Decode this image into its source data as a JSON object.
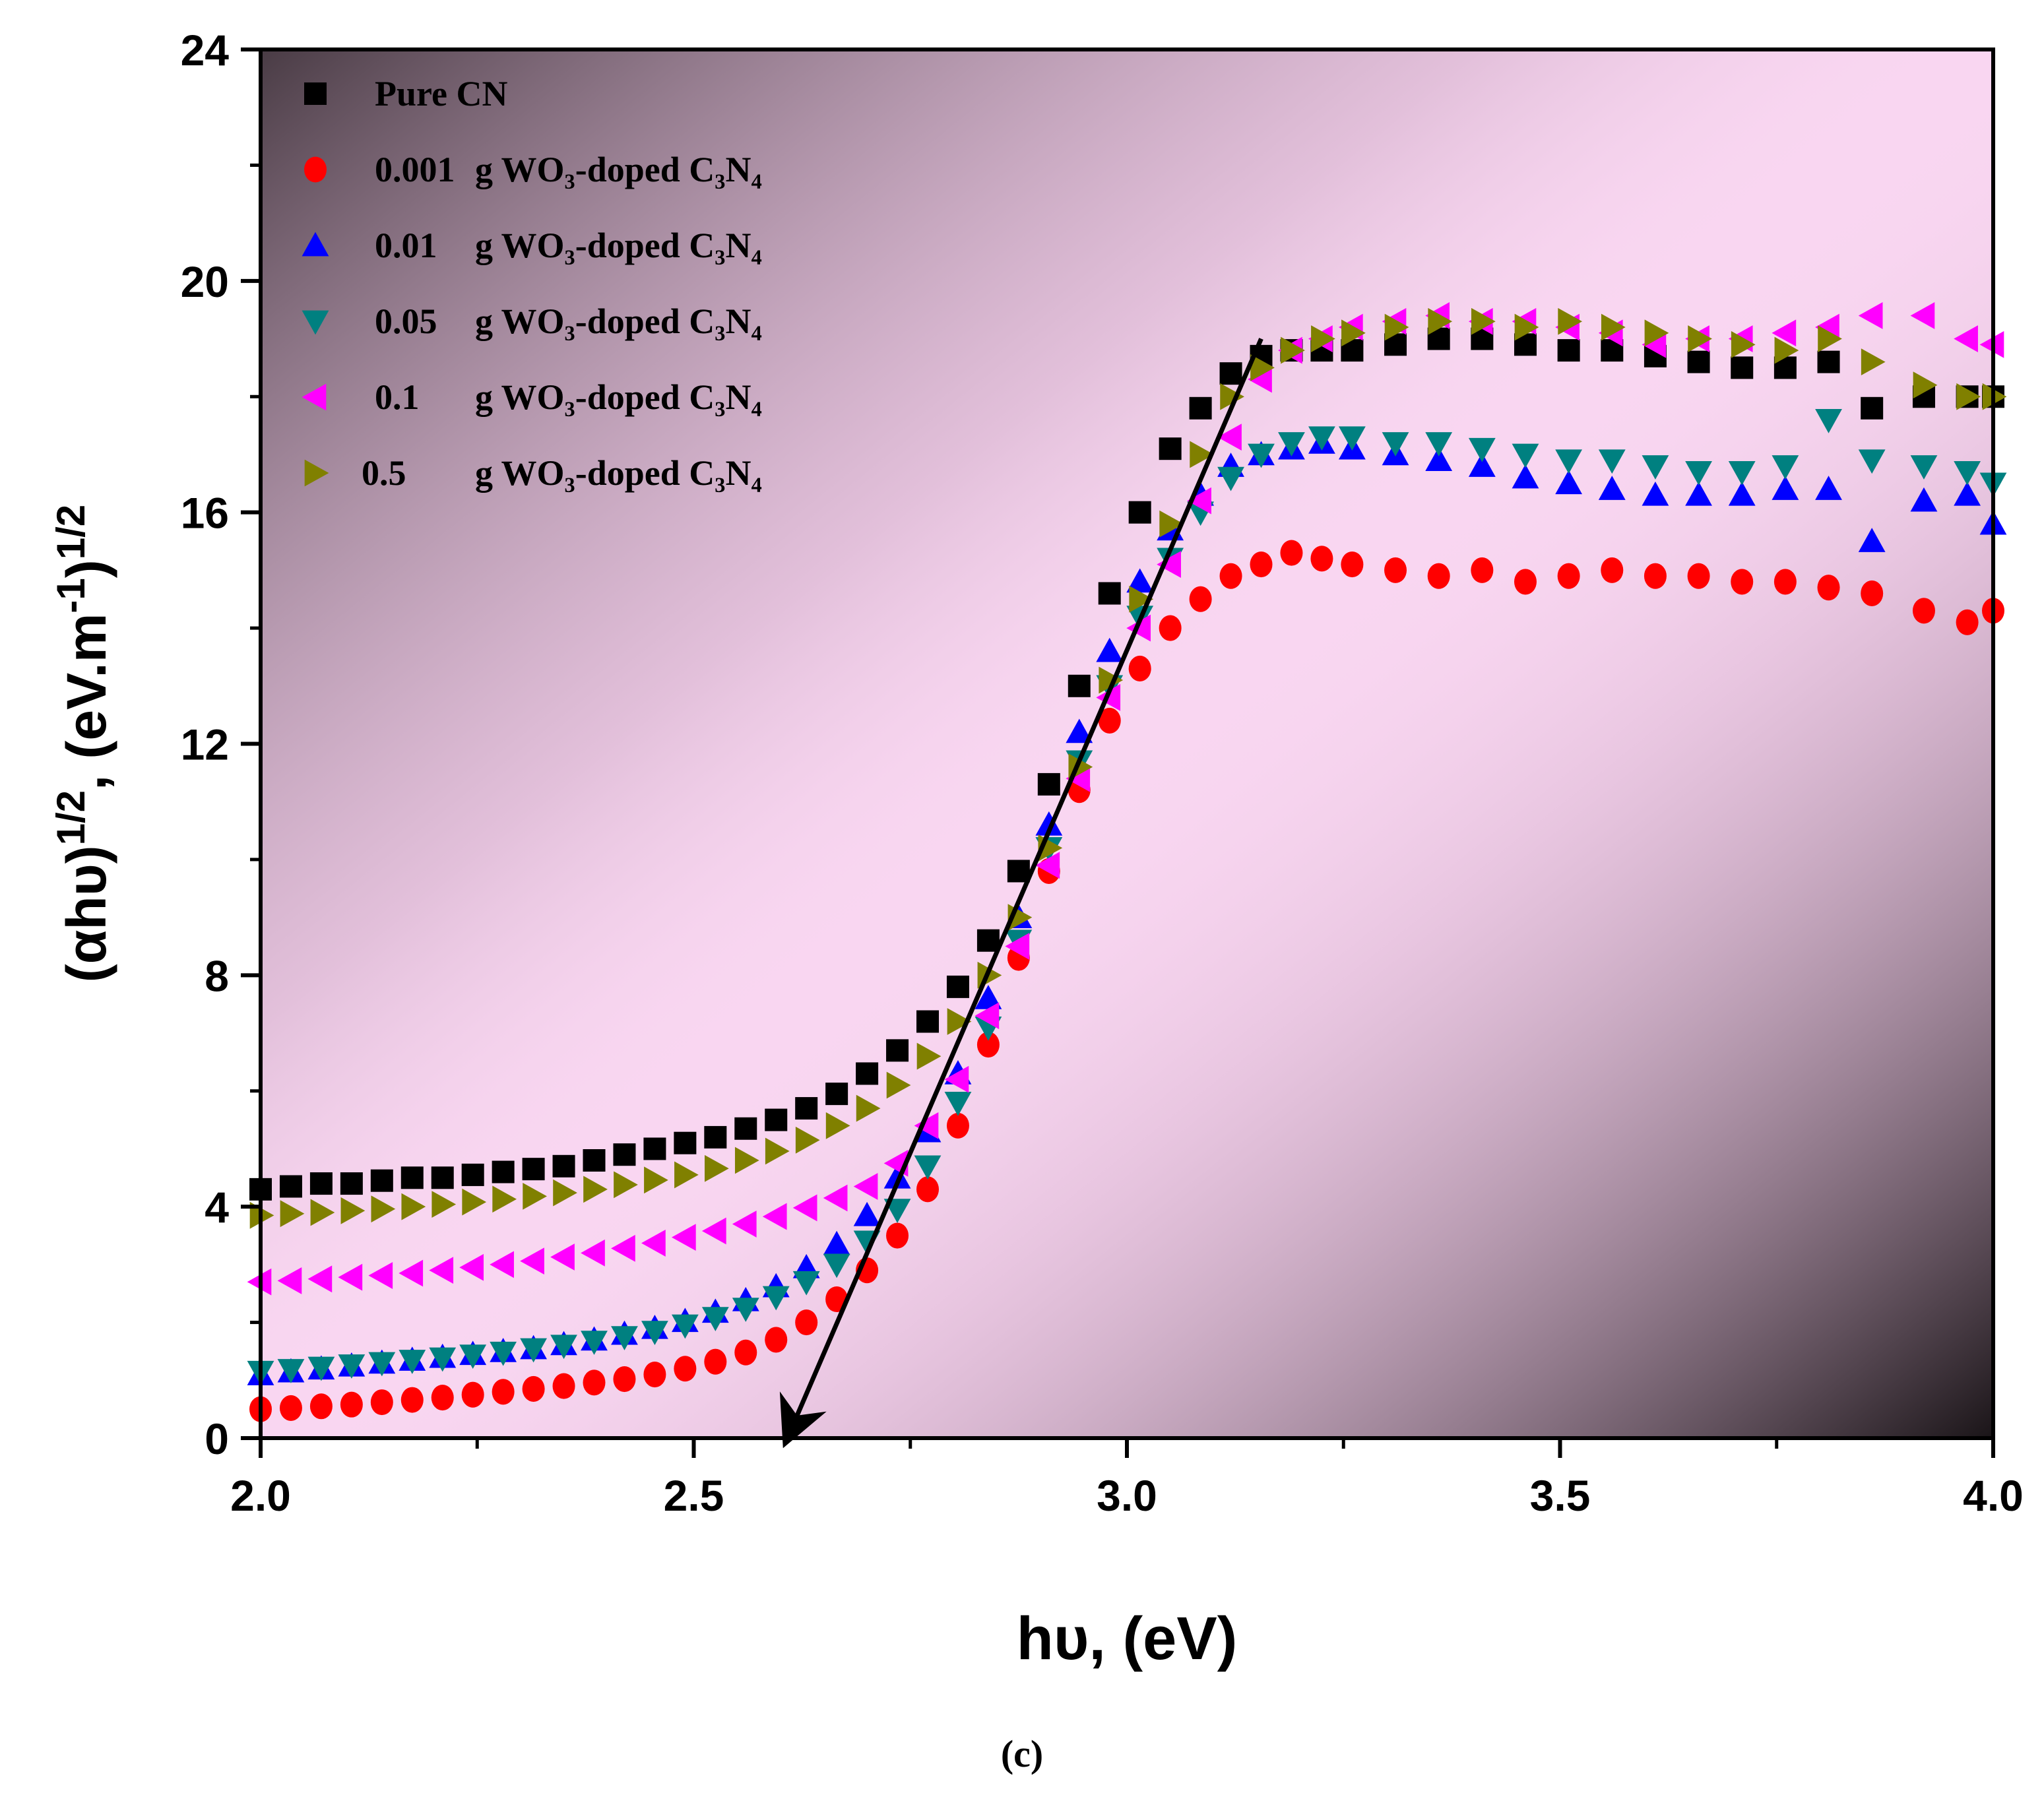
{
  "chart_data": {
    "type": "scatter",
    "title": "",
    "caption": "(c)",
    "xlabel": "hυ, (eV)",
    "ylabel": {
      "base": "(αhυ)",
      "exp1": "1/2",
      "comma": ",",
      "unit_open": "(eV.m",
      "unit_exp": "-1",
      "unit_close": ")",
      "exp2": "1/2"
    },
    "xlim": [
      2.0,
      4.0
    ],
    "ylim": [
      0,
      24
    ],
    "x_ticks": [
      2.0,
      2.5,
      3.0,
      3.5,
      4.0
    ],
    "x_tick_labels": [
      "2.0",
      "2.5",
      "3.0",
      "3.5",
      "4.0"
    ],
    "y_ticks": [
      0,
      4,
      8,
      12,
      16,
      20,
      24
    ],
    "y_tick_labels": [
      "0",
      "4",
      "8",
      "12",
      "16",
      "20",
      "24"
    ],
    "grid": false,
    "legend_position": "top-left",
    "background": "pink-to-dark radial gradient",
    "colors": {
      "pure": "#000000",
      "c0001": "#ff0000",
      "c001": "#0000ff",
      "c005": "#008080",
      "c01": "#ff00ff",
      "c05": "#808000",
      "arrow": "#000000"
    },
    "series": [
      {
        "key": "pure",
        "marker": "square",
        "label_amount": "Pure CN",
        "label_rest": "",
        "x": [
          2.0,
          2.035,
          2.07,
          2.105,
          2.14,
          2.175,
          2.21,
          2.245,
          2.28,
          2.315,
          2.35,
          2.385,
          2.42,
          2.455,
          2.49,
          2.525,
          2.56,
          2.595,
          2.63,
          2.665,
          2.7,
          2.735,
          2.77,
          2.805,
          2.84,
          2.875,
          2.91,
          2.945,
          2.98,
          3.015,
          3.05,
          3.085,
          3.12,
          3.155,
          3.19,
          3.225,
          3.26,
          3.31,
          3.36,
          3.41,
          3.46,
          3.51,
          3.56,
          3.61,
          3.66,
          3.71,
          3.76,
          3.81,
          3.86,
          3.92,
          3.97,
          4.0
        ],
        "y": [
          4.3,
          4.35,
          4.4,
          4.4,
          4.45,
          4.5,
          4.5,
          4.55,
          4.6,
          4.65,
          4.7,
          4.8,
          4.9,
          5.0,
          5.1,
          5.2,
          5.35,
          5.5,
          5.7,
          5.95,
          6.3,
          6.7,
          7.2,
          7.8,
          8.6,
          9.8,
          11.3,
          13.0,
          14.6,
          16.0,
          17.1,
          17.8,
          18.4,
          18.7,
          18.8,
          18.8,
          18.8,
          18.9,
          19.0,
          19.0,
          18.9,
          18.8,
          18.8,
          18.7,
          18.6,
          18.5,
          18.5,
          18.6,
          17.8,
          18.0,
          18.0,
          18.0
        ]
      },
      {
        "key": "c0001",
        "marker": "circle",
        "label_amount": "0.001",
        "label_rest": "g WO₃-doped C₃N₄",
        "x": [
          2.0,
          2.035,
          2.07,
          2.105,
          2.14,
          2.175,
          2.21,
          2.245,
          2.28,
          2.315,
          2.35,
          2.385,
          2.42,
          2.455,
          2.49,
          2.525,
          2.56,
          2.595,
          2.63,
          2.665,
          2.7,
          2.735,
          2.77,
          2.805,
          2.84,
          2.875,
          2.91,
          2.945,
          2.98,
          3.015,
          3.05,
          3.085,
          3.12,
          3.155,
          3.19,
          3.225,
          3.26,
          3.31,
          3.36,
          3.41,
          3.46,
          3.51,
          3.56,
          3.61,
          3.66,
          3.71,
          3.76,
          3.81,
          3.86,
          3.92,
          3.97,
          4.0
        ],
        "y": [
          0.5,
          0.52,
          0.55,
          0.58,
          0.62,
          0.66,
          0.7,
          0.75,
          0.8,
          0.85,
          0.9,
          0.96,
          1.02,
          1.1,
          1.2,
          1.32,
          1.48,
          1.7,
          2.0,
          2.4,
          2.9,
          3.5,
          4.3,
          5.4,
          6.8,
          8.3,
          9.8,
          11.2,
          12.4,
          13.3,
          14.0,
          14.5,
          14.9,
          15.1,
          15.3,
          15.2,
          15.1,
          15.0,
          14.9,
          15.0,
          14.8,
          14.9,
          15.0,
          14.9,
          14.9,
          14.8,
          14.8,
          14.7,
          14.6,
          14.3,
          14.1,
          14.3
        ]
      },
      {
        "key": "c001",
        "marker": "triangle-up",
        "label_amount": "0.01",
        "label_rest": "g WO₃-doped C₃N₄",
        "x": [
          2.0,
          2.035,
          2.07,
          2.105,
          2.14,
          2.175,
          2.21,
          2.245,
          2.28,
          2.315,
          2.35,
          2.385,
          2.42,
          2.455,
          2.49,
          2.525,
          2.56,
          2.595,
          2.63,
          2.665,
          2.7,
          2.735,
          2.77,
          2.805,
          2.84,
          2.875,
          2.91,
          2.945,
          2.98,
          3.015,
          3.05,
          3.085,
          3.12,
          3.155,
          3.19,
          3.225,
          3.26,
          3.31,
          3.36,
          3.41,
          3.46,
          3.51,
          3.56,
          3.61,
          3.66,
          3.71,
          3.76,
          3.81,
          3.86,
          3.92,
          3.97,
          4.0
        ],
        "y": [
          1.1,
          1.15,
          1.2,
          1.25,
          1.3,
          1.35,
          1.4,
          1.45,
          1.5,
          1.55,
          1.62,
          1.7,
          1.8,
          1.9,
          2.02,
          2.18,
          2.38,
          2.62,
          2.95,
          3.35,
          3.85,
          4.5,
          5.3,
          6.3,
          7.6,
          9.0,
          10.6,
          12.2,
          13.6,
          14.8,
          15.7,
          16.3,
          16.8,
          17.0,
          17.1,
          17.2,
          17.1,
          17.0,
          16.9,
          16.8,
          16.6,
          16.5,
          16.4,
          16.3,
          16.3,
          16.3,
          16.4,
          16.4,
          15.5,
          16.2,
          16.3,
          15.8
        ]
      },
      {
        "key": "c005",
        "marker": "triangle-down",
        "label_amount": "0.05",
        "label_rest": "g WO₃-doped C₃N₄",
        "x": [
          2.0,
          2.035,
          2.07,
          2.105,
          2.14,
          2.175,
          2.21,
          2.245,
          2.28,
          2.315,
          2.35,
          2.385,
          2.42,
          2.455,
          2.49,
          2.525,
          2.56,
          2.595,
          2.63,
          2.665,
          2.7,
          2.735,
          2.77,
          2.805,
          2.84,
          2.875,
          2.91,
          2.945,
          2.98,
          3.015,
          3.05,
          3.085,
          3.12,
          3.155,
          3.19,
          3.225,
          3.26,
          3.31,
          3.36,
          3.41,
          3.46,
          3.51,
          3.56,
          3.61,
          3.66,
          3.71,
          3.76,
          3.81,
          3.86,
          3.92,
          3.97,
          4.0
        ],
        "y": [
          1.15,
          1.18,
          1.22,
          1.26,
          1.3,
          1.34,
          1.38,
          1.43,
          1.48,
          1.54,
          1.6,
          1.67,
          1.75,
          1.84,
          1.95,
          2.08,
          2.24,
          2.44,
          2.7,
          3.0,
          3.4,
          3.95,
          4.7,
          5.8,
          7.1,
          8.6,
          10.2,
          11.7,
          13.0,
          14.2,
          15.2,
          16.0,
          16.6,
          17.0,
          17.2,
          17.3,
          17.3,
          17.2,
          17.2,
          17.1,
          17.0,
          16.9,
          16.9,
          16.8,
          16.7,
          16.7,
          16.8,
          17.6,
          16.9,
          16.8,
          16.7,
          16.5
        ]
      },
      {
        "key": "c01",
        "marker": "triangle-left",
        "label_amount": "0.1",
        "label_rest": "g WO₃-doped C₃N₄",
        "x": [
          2.0,
          2.035,
          2.07,
          2.105,
          2.14,
          2.175,
          2.21,
          2.245,
          2.28,
          2.315,
          2.35,
          2.385,
          2.42,
          2.455,
          2.49,
          2.525,
          2.56,
          2.595,
          2.63,
          2.665,
          2.7,
          2.735,
          2.77,
          2.805,
          2.84,
          2.875,
          2.91,
          2.945,
          2.98,
          3.015,
          3.05,
          3.085,
          3.12,
          3.155,
          3.19,
          3.225,
          3.26,
          3.31,
          3.36,
          3.41,
          3.46,
          3.51,
          3.56,
          3.61,
          3.66,
          3.71,
          3.76,
          3.81,
          3.86,
          3.92,
          3.97,
          4.0
        ],
        "y": [
          2.7,
          2.72,
          2.75,
          2.78,
          2.81,
          2.85,
          2.9,
          2.95,
          3.0,
          3.06,
          3.13,
          3.2,
          3.28,
          3.37,
          3.47,
          3.58,
          3.7,
          3.83,
          3.98,
          4.15,
          4.35,
          4.75,
          5.4,
          6.2,
          7.3,
          8.5,
          9.9,
          11.4,
          12.8,
          14.0,
          15.1,
          16.2,
          17.3,
          18.3,
          18.8,
          19.0,
          19.2,
          19.3,
          19.4,
          19.3,
          19.3,
          19.2,
          19.1,
          18.9,
          19.0,
          19.0,
          19.1,
          19.2,
          19.4,
          19.4,
          19.0,
          18.9
        ]
      },
      {
        "key": "c05",
        "marker": "triangle-right",
        "label_amount": "0.5",
        "label_rest": "g WO₃-doped C₃N₄",
        "x": [
          2.0,
          2.035,
          2.07,
          2.105,
          2.14,
          2.175,
          2.21,
          2.245,
          2.28,
          2.315,
          2.35,
          2.385,
          2.42,
          2.455,
          2.49,
          2.525,
          2.56,
          2.595,
          2.63,
          2.665,
          2.7,
          2.735,
          2.77,
          2.805,
          2.84,
          2.875,
          2.91,
          2.945,
          2.98,
          3.015,
          3.05,
          3.085,
          3.12,
          3.155,
          3.19,
          3.225,
          3.26,
          3.31,
          3.36,
          3.41,
          3.46,
          3.51,
          3.56,
          3.61,
          3.66,
          3.71,
          3.76,
          3.81,
          3.86,
          3.92,
          3.97,
          4.0
        ],
        "y": [
          3.85,
          3.88,
          3.9,
          3.93,
          3.96,
          4.0,
          4.04,
          4.08,
          4.13,
          4.18,
          4.24,
          4.3,
          4.38,
          4.46,
          4.55,
          4.66,
          4.8,
          4.96,
          5.15,
          5.4,
          5.7,
          6.1,
          6.6,
          7.2,
          8.0,
          9.0,
          10.2,
          11.6,
          13.1,
          14.5,
          15.8,
          17.0,
          18.0,
          18.5,
          18.8,
          19.0,
          19.1,
          19.2,
          19.3,
          19.3,
          19.2,
          19.3,
          19.2,
          19.1,
          19.0,
          18.9,
          18.8,
          19.0,
          18.6,
          18.2,
          18.0,
          18.0
        ]
      }
    ],
    "annotations": [
      {
        "type": "arrow",
        "from": [
          3.155,
          19.0
        ],
        "to": [
          2.61,
          0.0
        ]
      }
    ]
  }
}
